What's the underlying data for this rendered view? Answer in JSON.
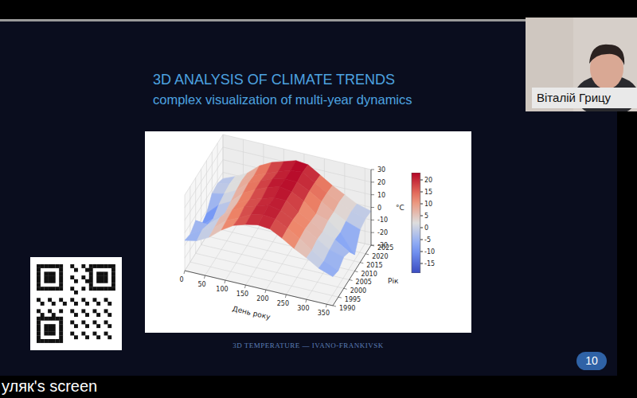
{
  "screen": {
    "presenter_label": "уляк's screen",
    "participant": "Віталій Грицу"
  },
  "slide": {
    "title": "3D ANALYSIS OF CLIMATE TRENDS",
    "subtitle": "complex visualization of multi-year dynamics",
    "caption": "3D TEMPERATURE — IVANO-FRANKIVSK",
    "page": 10
  },
  "chart_data": {
    "type": "surface3d",
    "x_label": "День року",
    "y_label": "Рік",
    "z_label": "°C",
    "grid": true,
    "x": [
      0,
      30,
      60,
      90,
      120,
      150,
      180,
      210,
      240,
      270,
      300,
      330,
      365
    ],
    "y": [
      1990,
      1995,
      2000,
      2005,
      2010,
      2015,
      2020,
      2025
    ],
    "z": [
      [
        -6,
        -4,
        1,
        9,
        15,
        18,
        20,
        19,
        14,
        8,
        3,
        -3,
        -7
      ],
      [
        -8,
        -2,
        2,
        10,
        14,
        19,
        21,
        20,
        15,
        9,
        2,
        -4,
        -9
      ],
      [
        -4,
        -5,
        3,
        11,
        16,
        19,
        22,
        20,
        15,
        10,
        4,
        -2,
        -5
      ],
      [
        -15,
        -7,
        0,
        10,
        15,
        18,
        21,
        21,
        14,
        9,
        3,
        -1,
        -8
      ],
      [
        -12,
        -3,
        2,
        11,
        16,
        20,
        23,
        21,
        16,
        8,
        5,
        -2,
        -17
      ],
      [
        -3,
        -1,
        4,
        12,
        16,
        20,
        22,
        22,
        17,
        11,
        5,
        0,
        -4
      ],
      [
        -2,
        0,
        5,
        11,
        15,
        19,
        22,
        23,
        17,
        11,
        6,
        1,
        -2
      ],
      [
        -5,
        -1,
        4,
        12,
        17,
        20,
        23,
        22,
        16,
        10,
        5,
        0,
        -3
      ]
    ],
    "xlim": [
      0,
      365
    ],
    "xticks": [
      0,
      50,
      100,
      150,
      200,
      250,
      300,
      350
    ],
    "ylim": [
      1990,
      2025
    ],
    "yticks": [
      1990,
      1995,
      2000,
      2005,
      2010,
      2015,
      2020,
      2025
    ],
    "zlim": [
      -30,
      30
    ],
    "zticks": [
      -30,
      -20,
      -10,
      0,
      10,
      20,
      30
    ],
    "colorbar": {
      "range": [
        -19,
        23
      ],
      "ticks": [
        -15,
        -10,
        -5,
        0,
        5,
        10,
        15,
        20
      ]
    }
  }
}
